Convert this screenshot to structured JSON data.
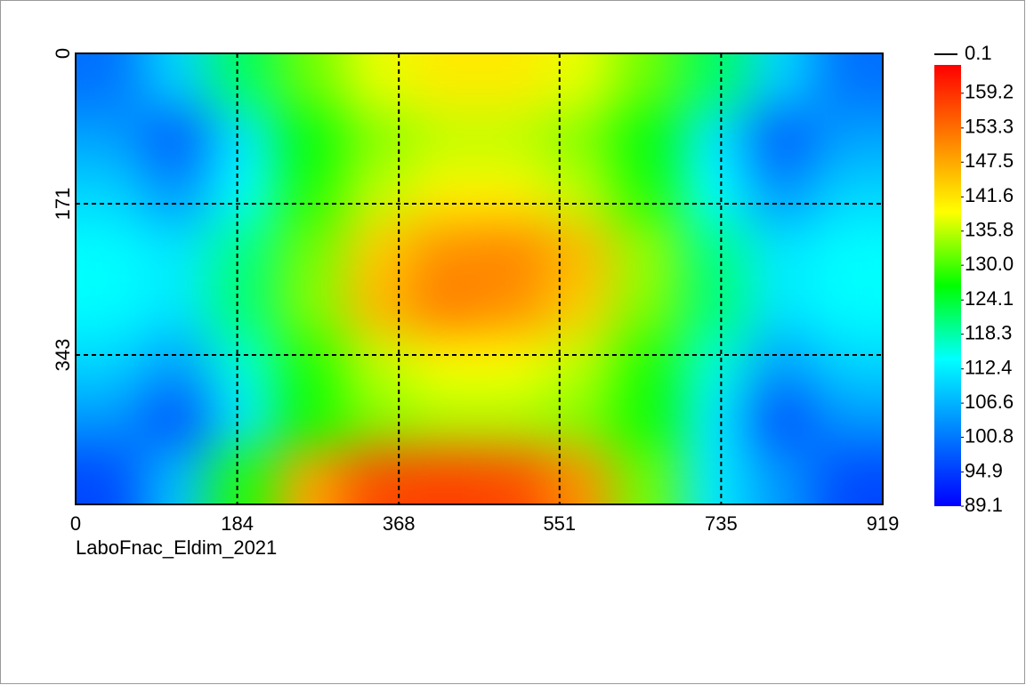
{
  "chart_data": {
    "type": "heatmap",
    "xlim": [
      0,
      919
    ],
    "xticks": [
      0,
      184,
      368,
      551,
      735,
      919
    ],
    "ylim": [
      0,
      513
    ],
    "yticks": [
      0,
      171,
      343
    ],
    "y_inverted": true,
    "grid": true,
    "footer": "LaboFnac_Eldim_2021",
    "legend_line_label": 0.1,
    "zlim": [
      89.1,
      164
    ],
    "zticks": [
      159.2,
      153.3,
      147.5,
      141.6,
      135.8,
      {
        "value": 130,
        "label": "130.0"
      },
      124.1,
      118.3,
      112.4,
      106.6,
      100.8,
      94.9,
      89.1
    ],
    "colorscale": [
      "#0000ff",
      "#0080ff",
      "#00ffff",
      "#00ff00",
      "#ffff00",
      "#ff8000",
      "#ff0000"
    ],
    "values": [
      [
        100,
        110,
        122,
        132,
        138,
        141,
        141,
        138,
        132,
        122,
        110,
        100
      ],
      [
        105,
        98,
        112,
        126,
        133,
        136,
        136,
        133,
        126,
        112,
        98,
        105
      ],
      [
        110,
        104,
        114,
        128,
        136,
        140,
        140,
        136,
        128,
        114,
        104,
        110
      ],
      [
        114,
        112,
        120,
        132,
        144,
        150,
        151,
        146,
        134,
        120,
        112,
        114
      ],
      [
        114,
        112,
        121,
        133,
        146,
        152,
        150,
        144,
        133,
        121,
        112,
        114
      ],
      [
        110,
        105,
        116,
        128,
        136,
        139,
        139,
        136,
        128,
        116,
        105,
        110
      ],
      [
        104,
        97,
        112,
        127,
        133,
        135,
        135,
        133,
        127,
        112,
        97,
        104
      ],
      [
        96,
        108,
        128,
        148,
        157,
        158,
        157,
        150,
        132,
        112,
        104,
        96
      ]
    ]
  }
}
